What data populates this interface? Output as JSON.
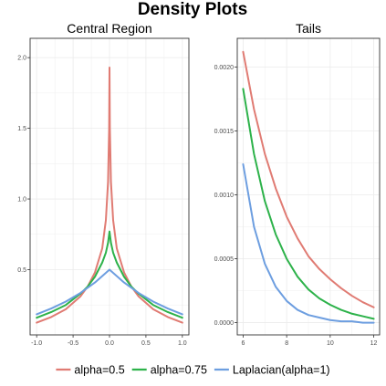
{
  "title": "Density Plots",
  "legend": {
    "position": "bottom",
    "entries": [
      {
        "label": "alpha=0.5",
        "color": "#E07B73"
      },
      {
        "label": "alpha=0.75",
        "color": "#2DB24A"
      },
      {
        "label": "Laplacian(alpha=1)",
        "color": "#6D9EE0"
      }
    ]
  },
  "chart_data": [
    {
      "type": "line",
      "title": "Central Region",
      "xlabel": "",
      "ylabel": "",
      "xlim": [
        -1.0,
        1.0
      ],
      "ylim": [
        0.125,
        2.05
      ],
      "grid": true,
      "x_ticks": [
        -1.0,
        -0.5,
        0.0,
        0.5,
        1.0
      ],
      "x_tick_labels": [
        "-1.0",
        "-0.5",
        "0.0",
        "0.5",
        "1.0"
      ],
      "y_ticks": [
        0.5,
        1.0,
        1.5,
        2.0
      ],
      "y_tick_labels": [
        "0.5",
        "1.0",
        "1.5",
        "2.0"
      ],
      "series": [
        {
          "name": "alpha=0.5",
          "color": "#E07B73",
          "x": [
            -1.0,
            -0.8,
            -0.6,
            -0.4,
            -0.3,
            -0.2,
            -0.1,
            -0.05,
            -0.02,
            -0.005,
            0.0,
            0.005,
            0.02,
            0.05,
            0.1,
            0.2,
            0.3,
            0.4,
            0.6,
            0.8,
            1.0
          ],
          "y": [
            0.125,
            0.165,
            0.22,
            0.31,
            0.38,
            0.48,
            0.65,
            0.85,
            1.12,
            1.5,
            1.93,
            1.5,
            1.12,
            0.85,
            0.65,
            0.48,
            0.38,
            0.31,
            0.22,
            0.165,
            0.125
          ]
        },
        {
          "name": "alpha=0.75",
          "color": "#2DB24A",
          "x": [
            -1.0,
            -0.8,
            -0.6,
            -0.4,
            -0.3,
            -0.2,
            -0.1,
            -0.05,
            -0.02,
            0.0,
            0.02,
            0.05,
            0.1,
            0.2,
            0.3,
            0.4,
            0.6,
            0.8,
            1.0
          ],
          "y": [
            0.16,
            0.2,
            0.25,
            0.33,
            0.38,
            0.45,
            0.55,
            0.62,
            0.69,
            0.77,
            0.69,
            0.62,
            0.55,
            0.45,
            0.38,
            0.33,
            0.25,
            0.2,
            0.16
          ]
        },
        {
          "name": "Laplacian(alpha=1)",
          "color": "#6D9EE0",
          "x": [
            -1.0,
            -0.8,
            -0.6,
            -0.4,
            -0.2,
            0.0,
            0.2,
            0.4,
            0.6,
            0.8,
            1.0
          ],
          "y": [
            0.184,
            0.225,
            0.274,
            0.335,
            0.409,
            0.5,
            0.409,
            0.335,
            0.274,
            0.225,
            0.184
          ]
        }
      ]
    },
    {
      "type": "line",
      "title": "Tails",
      "xlabel": "",
      "ylabel": "",
      "xlim": [
        6,
        12
      ],
      "ylim": [
        0,
        0.00213
      ],
      "grid": true,
      "x_ticks": [
        6,
        8,
        10,
        12
      ],
      "x_tick_labels": [
        "6",
        "8",
        "10",
        "12"
      ],
      "y_ticks": [
        0.0,
        0.0005,
        0.001,
        0.0015,
        0.002
      ],
      "y_tick_labels": [
        "0.0000",
        "0.0005",
        "0.0010",
        "0.0015",
        "0.0020"
      ],
      "series": [
        {
          "name": "alpha=0.5",
          "color": "#E07B73",
          "x": [
            6,
            6.5,
            7,
            7.5,
            8,
            8.5,
            9,
            9.5,
            10,
            10.5,
            11,
            11.5,
            12
          ],
          "y": [
            0.00212,
            0.00167,
            0.00132,
            0.00105,
            0.00083,
            0.00066,
            0.00052,
            0.00042,
            0.00034,
            0.00027,
            0.00021,
            0.00016,
            0.00012
          ]
        },
        {
          "name": "alpha=0.75",
          "color": "#2DB24A",
          "x": [
            6,
            6.5,
            7,
            7.5,
            8,
            8.5,
            9,
            9.5,
            10,
            10.5,
            11,
            11.5,
            12
          ],
          "y": [
            0.00183,
            0.00132,
            0.00095,
            0.00069,
            0.0005,
            0.00036,
            0.00026,
            0.00019,
            0.00014,
            0.0001,
            7e-05,
            5e-05,
            3e-05
          ]
        },
        {
          "name": "Laplacian(alpha=1)",
          "color": "#6D9EE0",
          "x": [
            6,
            6.5,
            7,
            7.5,
            8,
            8.5,
            9,
            9.5,
            10,
            10.5,
            11,
            11.5,
            12
          ],
          "y": [
            0.00124,
            0.00075,
            0.00046,
            0.00028,
            0.00017,
            0.0001,
            6e-05,
            4e-05,
            2e-05,
            1e-05,
            1e-05,
            0.0,
            0.0
          ]
        }
      ]
    }
  ]
}
